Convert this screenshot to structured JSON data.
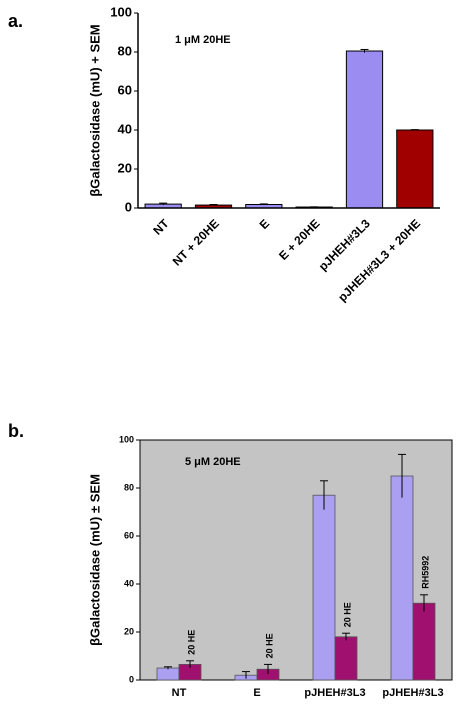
{
  "chart_data": [
    {
      "type": "bar",
      "panel": "a.",
      "ylabel": "βGalactosidase (mU) + SEM",
      "annotation": "1 μM 20HE",
      "categories": [
        "NT",
        "NT + 20HE",
        "E",
        "E + 20HE",
        "pJHEH#3L3",
        "pJHEH#3L3 + 20HE"
      ],
      "values": [
        2,
        1.5,
        1.8,
        0.5,
        80.5,
        40
      ],
      "errors": [
        0.5,
        0.3,
        0.3,
        0.1,
        0.8,
        0.2
      ],
      "colors": [
        "#9b8cf2",
        "#a00000",
        "#9b8cf2",
        "#a00000",
        "#9b8cf2",
        "#a00000"
      ],
      "ylim": [
        0,
        100
      ],
      "yticks": [
        0,
        20,
        40,
        60,
        80,
        100
      ]
    },
    {
      "type": "grouped_bar",
      "panel": "b.",
      "ylabel": "βGalactosidase (mU) ± SEM",
      "annotation": "5 μM 20HE",
      "categories": [
        "NT",
        "E",
        "pJHEH#3L3",
        "pJHEH#3L3"
      ],
      "series": [
        {
          "color": "#ab9ff2",
          "values": [
            5,
            2,
            77,
            85
          ],
          "errors": [
            0.5,
            1.5,
            6,
            9
          ]
        },
        {
          "color": "#a0106e",
          "values": [
            6.5,
            4.5,
            18,
            32
          ],
          "errors": [
            1.5,
            2,
            1.5,
            3.5
          ]
        }
      ],
      "bar_labels": [
        "20 HE",
        "20 HE",
        "20 HE",
        "RH5992"
      ],
      "background": "#c4c4c4",
      "ylim": [
        0,
        100
      ],
      "yticks": [
        0,
        20,
        40,
        60,
        80,
        100
      ]
    }
  ]
}
